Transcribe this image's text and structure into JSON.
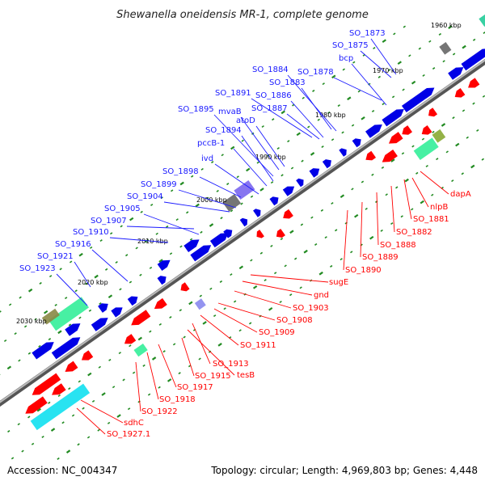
{
  "title": "Shewanella oneidensis MR-1, complete genome",
  "footer": {
    "accession": "Accession: NC_004347",
    "summary": "Topology: circular; Length: 4,969,803 bp; Genes: 4,448"
  },
  "colors": {
    "forward_label": "#1a1aff",
    "reverse_label": "#ff0000",
    "backbone": "#808080",
    "tick": "#228b22"
  },
  "kbp_marks": [
    "1960 kbp",
    "1970 kbp",
    "1980 kbp",
    "1990 kbp",
    "2000 kbp",
    "2010 kbp",
    "2020 kbp",
    "2030 kbp"
  ],
  "forward_labels": [
    "SO_1873",
    "SO_1875",
    "bcp",
    "SO_1878",
    "SO_1884",
    "SO_1883",
    "SO_1891",
    "SO_1886",
    "SO_1887",
    "SO_1895",
    "mvaB",
    "atoD",
    "SO_1894",
    "pccB-1",
    "ivd",
    "SO_1898",
    "SO_1899",
    "SO_1904",
    "SO_1905",
    "SO_1907",
    "SO_1910",
    "SO_1916",
    "SO_1921",
    "SO_1923"
  ],
  "reverse_labels": [
    "dapA",
    "nlpB",
    "SO_1881",
    "SO_1882",
    "SO_1888",
    "SO_1889",
    "SO_1890",
    "sugE",
    "gnd",
    "SO_1903",
    "SO_1908",
    "SO_1909",
    "SO_1911",
    "SO_1913",
    "tesB",
    "SO_1915",
    "SO_1917",
    "SO_1918",
    "SO_1922",
    "sdhC",
    "SO_1927.1"
  ]
}
